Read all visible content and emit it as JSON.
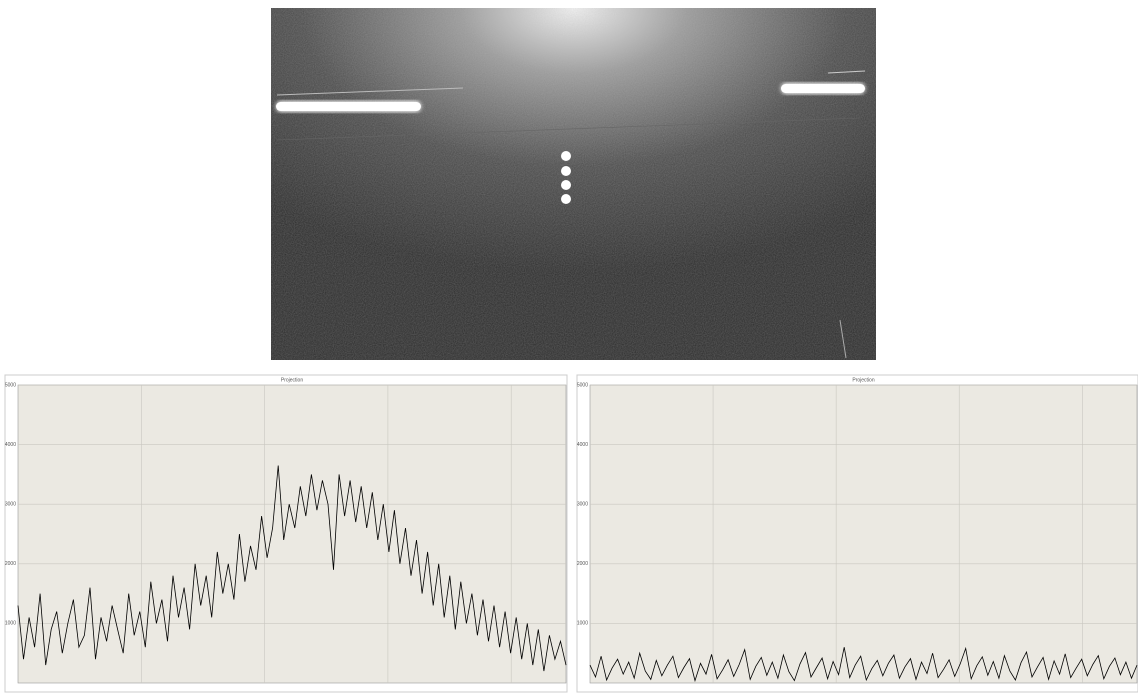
{
  "chart_data": [
    {
      "type": "line",
      "title": "Projection",
      "color": "#000000",
      "ylim": [
        0,
        5000
      ],
      "yticks": [
        1000,
        2000,
        3000,
        4000,
        5000
      ],
      "grid": true,
      "values": [
        1300,
        400,
        1100,
        600,
        1500,
        300,
        900,
        1200,
        500,
        1000,
        1400,
        600,
        800,
        1600,
        400,
        1100,
        700,
        1300,
        900,
        500,
        1500,
        800,
        1200,
        600,
        1700,
        1000,
        1400,
        700,
        1800,
        1100,
        1600,
        900,
        2000,
        1300,
        1800,
        1100,
        2200,
        1500,
        2000,
        1400,
        2500,
        1700,
        2300,
        1900,
        2800,
        2100,
        2600,
        3650,
        2400,
        3000,
        2600,
        3300,
        2800,
        3500,
        2900,
        3400,
        3000,
        1900,
        3500,
        2800,
        3400,
        2700,
        3300,
        2600,
        3200,
        2400,
        3000,
        2200,
        2900,
        2000,
        2600,
        1800,
        2400,
        1500,
        2200,
        1300,
        2000,
        1100,
        1800,
        900,
        1700,
        1000,
        1500,
        800,
        1400,
        700,
        1300,
        600,
        1200,
        500,
        1100,
        400,
        1000,
        300,
        900,
        200,
        800,
        400,
        700,
        300
      ]
    },
    {
      "type": "line",
      "title": "Projection",
      "color": "#000000",
      "ylim": [
        0,
        5000
      ],
      "yticks": [
        1000,
        2000,
        3000,
        4000,
        5000
      ],
      "grid": true,
      "values": [
        300,
        100,
        450,
        50,
        250,
        400,
        150,
        350,
        80,
        500,
        200,
        60,
        380,
        120,
        300,
        450,
        90,
        260,
        410,
        40,
        330,
        150,
        480,
        70,
        220,
        390,
        110,
        310,
        560,
        60,
        280,
        430,
        130,
        350,
        80,
        470,
        190,
        40,
        320,
        510,
        100,
        260,
        420,
        70,
        360,
        140,
        600,
        90,
        300,
        450,
        50,
        240,
        380,
        120,
        330,
        470,
        80,
        270,
        410,
        60,
        350,
        160,
        500,
        90,
        230,
        390,
        110,
        320,
        580,
        70,
        290,
        440,
        130,
        360,
        80,
        460,
        200,
        50,
        340,
        520,
        100,
        270,
        430,
        60,
        370,
        150,
        490,
        90,
        250,
        400,
        120,
        310,
        460,
        70,
        280,
        420,
        140,
        350,
        80,
        300
      ]
    }
  ]
}
